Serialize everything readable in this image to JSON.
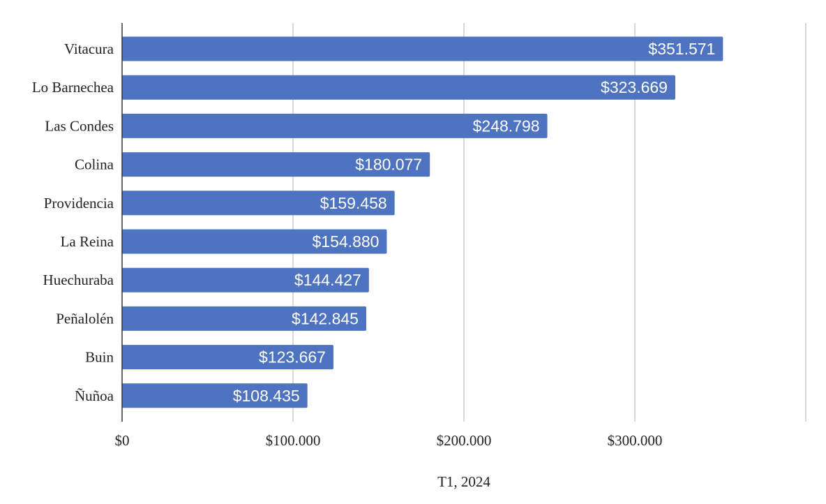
{
  "chart_data": {
    "type": "bar",
    "orientation": "horizontal",
    "categories": [
      "Vitacura",
      "Lo Barnechea",
      "Las Condes",
      "Colina",
      "Providencia",
      "La Reina",
      "Huechuraba",
      "Peñalolén",
      "Buin",
      "Ñuñoa"
    ],
    "values": [
      351571,
      323669,
      248798,
      180077,
      159458,
      154880,
      144427,
      142845,
      123667,
      108435
    ],
    "data_labels": [
      "$351.571",
      "$323.669",
      "$248.798",
      "$180.077",
      "$159.458",
      "$154.880",
      "$144.427",
      "$142.845",
      "$123.667",
      "$108.435"
    ],
    "x_ticks": [
      0,
      100000,
      200000,
      300000,
      400000
    ],
    "x_tick_labels": [
      "$0",
      "$100.000",
      "$200.000",
      "$300.000",
      ""
    ],
    "xlim": [
      0,
      400000
    ],
    "xlabel": "T1, 2024",
    "ylabel": "",
    "title": "",
    "grid": true,
    "legend": "none",
    "bar_color": "#4e73c1"
  }
}
